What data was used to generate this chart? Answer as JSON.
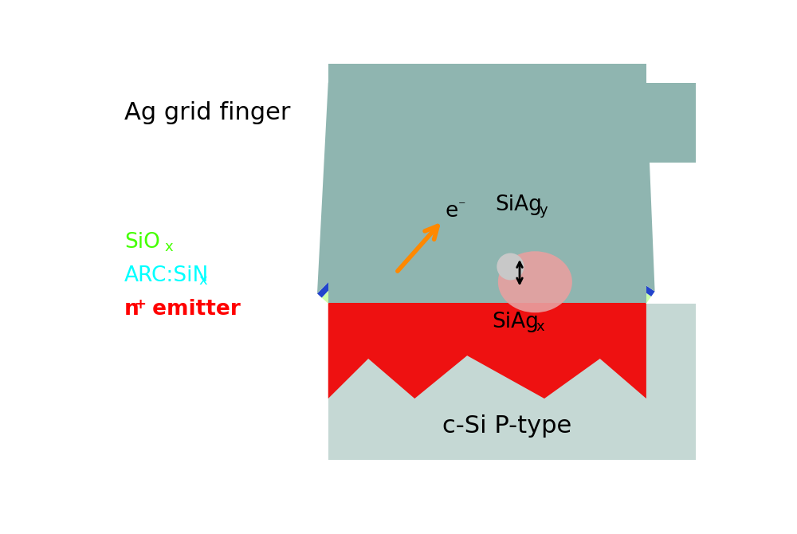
{
  "bg_color": "#ffffff",
  "csi_color": "#c5d8d4",
  "ag_color": "#8fb5b0",
  "red_color": "#ee1111",
  "green_color": "#ccffaa",
  "blue_color": "#2244cc",
  "orange_color": "#ff8800",
  "siag_blob_color": "#e8a0a0",
  "siag_center_color": "#c0c0c0",
  "label_ag": "Ag grid finger",
  "label_sio_main": "SiO",
  "label_sio_sub": "x",
  "label_arc_main": "ARC:SiN",
  "label_arc_sub": "x",
  "label_nem_n": "n",
  "label_nem_plus": "+",
  "label_nem_rest": " emitter",
  "label_csi": "c-Si P-type",
  "label_siag_y_main": "SiAg",
  "label_siag_y_sub": "y",
  "label_siag_x_main": "SiAg",
  "label_siag_x_sub": "x",
  "label_e_main": "e",
  "label_e_sup": "⁻",
  "sio_color": "#44ff00",
  "arc_color": "#00ffff",
  "nem_color": "#ff0000"
}
